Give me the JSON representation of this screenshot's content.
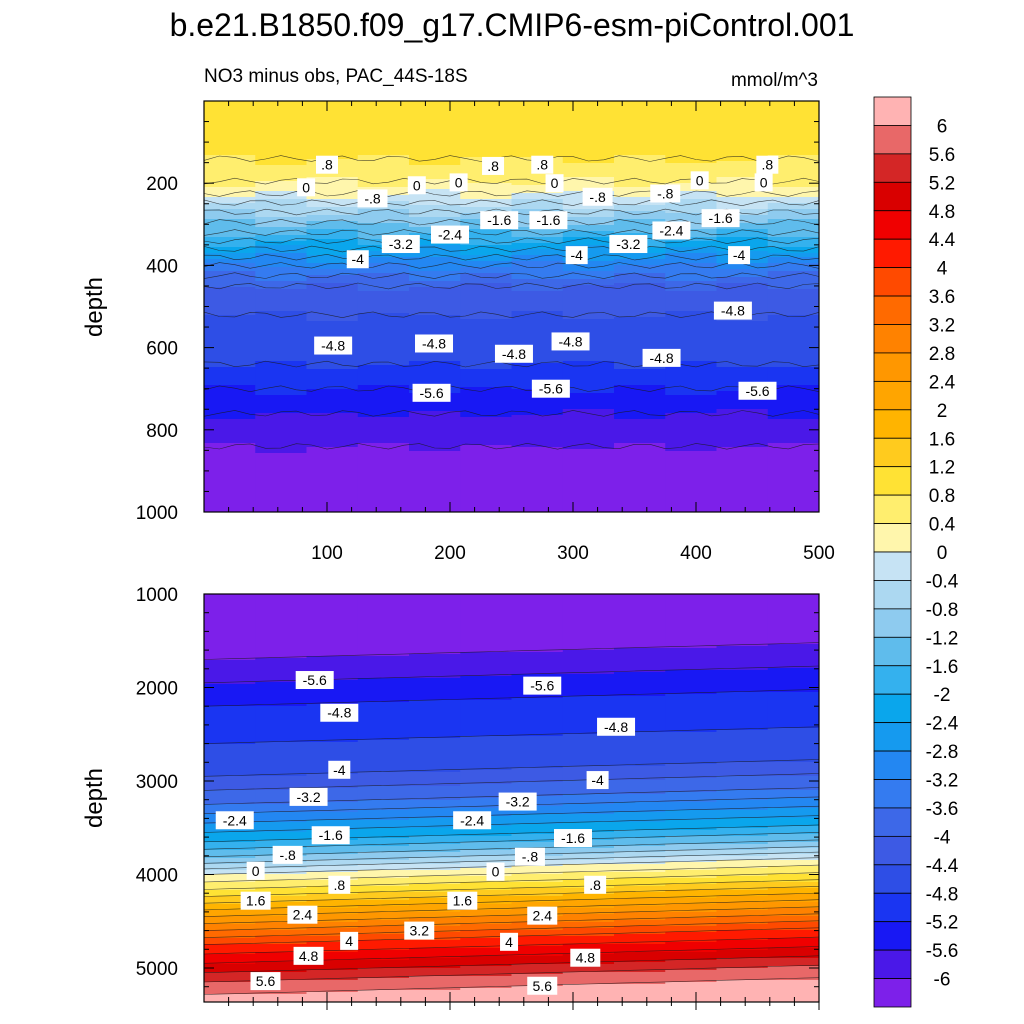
{
  "title": "b.e21.B1850.f09_g17.CMIP6-esm-piControl.001",
  "subtitle_left": "NO3 minus obs, PAC_44S-18S",
  "subtitle_right": "mmol/m^3",
  "chart_data": [
    {
      "type": "contour",
      "panel": "upper",
      "xlabel": "",
      "ylabel": "depth",
      "xlim": [
        0,
        500
      ],
      "ylim": [
        1000,
        0
      ],
      "xticks": [
        "100",
        "200",
        "300",
        "400",
        "500"
      ],
      "yticks": [
        "200",
        "400",
        "600",
        "800",
        "1000"
      ],
      "depth_profile": [
        {
          "depth": 0,
          "value": 1.0
        },
        {
          "depth": 100,
          "value": 1.0
        },
        {
          "depth": 180,
          "value": 0.6
        },
        {
          "depth": 225,
          "value": 0.0
        },
        {
          "depth": 270,
          "value": -0.8
        },
        {
          "depth": 320,
          "value": -1.6
        },
        {
          "depth": 360,
          "value": -2.4
        },
        {
          "depth": 400,
          "value": -3.2
        },
        {
          "depth": 450,
          "value": -4.0
        },
        {
          "depth": 520,
          "value": -4.4
        },
        {
          "depth": 640,
          "value": -4.8
        },
        {
          "depth": 700,
          "value": -5.2
        },
        {
          "depth": 760,
          "value": -5.6
        },
        {
          "depth": 840,
          "value": -6.0
        },
        {
          "depth": 1000,
          "value": -6.2
        }
      ],
      "contour_labels": [
        {
          "x": 100,
          "depth": 155,
          "text": ".8"
        },
        {
          "x": 235,
          "depth": 158,
          "text": ".8"
        },
        {
          "x": 275,
          "depth": 155,
          "text": ".8"
        },
        {
          "x": 458,
          "depth": 155,
          "text": ".8"
        },
        {
          "x": 83,
          "depth": 210,
          "text": "0"
        },
        {
          "x": 173,
          "depth": 205,
          "text": "0"
        },
        {
          "x": 207,
          "depth": 198,
          "text": "0"
        },
        {
          "x": 285,
          "depth": 200,
          "text": "0"
        },
        {
          "x": 403,
          "depth": 193,
          "text": "0"
        },
        {
          "x": 455,
          "depth": 198,
          "text": "0"
        },
        {
          "x": 137,
          "depth": 237,
          "text": "-.8"
        },
        {
          "x": 320,
          "depth": 233,
          "text": "-.8"
        },
        {
          "x": 375,
          "depth": 225,
          "text": "-.8"
        },
        {
          "x": 240,
          "depth": 290,
          "text": "-1.6"
        },
        {
          "x": 280,
          "depth": 290,
          "text": "-1.6"
        },
        {
          "x": 420,
          "depth": 285,
          "text": "-1.6"
        },
        {
          "x": 200,
          "depth": 325,
          "text": "-2.4"
        },
        {
          "x": 380,
          "depth": 315,
          "text": "-2.4"
        },
        {
          "x": 160,
          "depth": 348,
          "text": "-3.2"
        },
        {
          "x": 345,
          "depth": 348,
          "text": "-3.2"
        },
        {
          "x": 125,
          "depth": 385,
          "text": "-4"
        },
        {
          "x": 303,
          "depth": 375,
          "text": "-4"
        },
        {
          "x": 435,
          "depth": 375,
          "text": "-4"
        },
        {
          "x": 430,
          "depth": 510,
          "text": "-4.8"
        },
        {
          "x": 105,
          "depth": 595,
          "text": "-4.8"
        },
        {
          "x": 187,
          "depth": 590,
          "text": "-4.8"
        },
        {
          "x": 252,
          "depth": 615,
          "text": "-4.8"
        },
        {
          "x": 298,
          "depth": 585,
          "text": "-4.8"
        },
        {
          "x": 372,
          "depth": 625,
          "text": "-4.8"
        },
        {
          "x": 185,
          "depth": 710,
          "text": "-5.6"
        },
        {
          "x": 282,
          "depth": 700,
          "text": "-5.6"
        },
        {
          "x": 450,
          "depth": 705,
          "text": "-5.6"
        }
      ]
    },
    {
      "type": "contour",
      "panel": "lower",
      "xlabel": "",
      "ylabel": "depth",
      "xlim": [
        0,
        500
      ],
      "ylim": [
        1000,
        5350
      ],
      "yticks": [
        "1000",
        "2000",
        "3000",
        "4000",
        "5000"
      ],
      "depth_profile": [
        {
          "depth": 1000,
          "value": -6.2
        },
        {
          "depth": 1700,
          "value": -6.0
        },
        {
          "depth": 1950,
          "value": -5.6
        },
        {
          "depth": 2200,
          "value": -5.2
        },
        {
          "depth": 2600,
          "value": -4.8
        },
        {
          "depth": 2950,
          "value": -4.4
        },
        {
          "depth": 3250,
          "value": -3.6
        },
        {
          "depth": 3450,
          "value": -2.8
        },
        {
          "depth": 3650,
          "value": -2.0
        },
        {
          "depth": 3850,
          "value": -1.0
        },
        {
          "depth": 4000,
          "value": 0.0
        },
        {
          "depth": 4200,
          "value": 1.0
        },
        {
          "depth": 4450,
          "value": 2.4
        },
        {
          "depth": 4750,
          "value": 4.0
        },
        {
          "depth": 4950,
          "value": 4.8
        },
        {
          "depth": 5150,
          "value": 5.6
        },
        {
          "depth": 5350,
          "value": 6.2
        }
      ],
      "contour_labels": [
        {
          "x": 90,
          "depth": 1920,
          "text": "-5.6"
        },
        {
          "x": 275,
          "depth": 1980,
          "text": "-5.6"
        },
        {
          "x": 110,
          "depth": 2270,
          "text": "-4.8"
        },
        {
          "x": 335,
          "depth": 2420,
          "text": "-4.8"
        },
        {
          "x": 110,
          "depth": 2880,
          "text": "-4"
        },
        {
          "x": 320,
          "depth": 2990,
          "text": "-4"
        },
        {
          "x": 85,
          "depth": 3170,
          "text": "-3.2"
        },
        {
          "x": 255,
          "depth": 3220,
          "text": "-3.2"
        },
        {
          "x": 25,
          "depth": 3420,
          "text": "-2.4"
        },
        {
          "x": 218,
          "depth": 3420,
          "text": "-2.4"
        },
        {
          "x": 103,
          "depth": 3580,
          "text": "-1.6"
        },
        {
          "x": 300,
          "depth": 3610,
          "text": "-1.6"
        },
        {
          "x": 68,
          "depth": 3790,
          "text": "-.8"
        },
        {
          "x": 265,
          "depth": 3810,
          "text": "-.8"
        },
        {
          "x": 42,
          "depth": 3960,
          "text": "0"
        },
        {
          "x": 237,
          "depth": 3970,
          "text": "0"
        },
        {
          "x": 110,
          "depth": 4110,
          "text": ".8"
        },
        {
          "x": 318,
          "depth": 4110,
          "text": ".8"
        },
        {
          "x": 42,
          "depth": 4280,
          "text": "1.6"
        },
        {
          "x": 210,
          "depth": 4280,
          "text": "1.6"
        },
        {
          "x": 80,
          "depth": 4430,
          "text": "2.4"
        },
        {
          "x": 275,
          "depth": 4440,
          "text": "2.4"
        },
        {
          "x": 175,
          "depth": 4600,
          "text": "3.2"
        },
        {
          "x": 118,
          "depth": 4710,
          "text": "4"
        },
        {
          "x": 248,
          "depth": 4720,
          "text": "4"
        },
        {
          "x": 85,
          "depth": 4870,
          "text": "4.8"
        },
        {
          "x": 310,
          "depth": 4890,
          "text": "4.8"
        },
        {
          "x": 50,
          "depth": 5140,
          "text": "5.6"
        },
        {
          "x": 275,
          "depth": 5190,
          "text": "5.6"
        }
      ]
    }
  ],
  "colorbar": {
    "labels": [
      "6",
      "5.6",
      "5.2",
      "4.8",
      "4.4",
      "4",
      "3.6",
      "3.2",
      "2.8",
      "2.4",
      "2",
      "1.6",
      "1.2",
      "0.8",
      "0.4",
      "0",
      "-0.4",
      "-0.8",
      "-1.2",
      "-1.6",
      "-2",
      "-2.4",
      "-2.8",
      "-3.2",
      "-3.6",
      "-4",
      "-4.4",
      "-4.8",
      "-5.2",
      "-5.6",
      "-6"
    ],
    "colors": [
      "#ffb3b3",
      "#e86868",
      "#d42626",
      "#d90000",
      "#f00000",
      "#ff1a00",
      "#ff4a00",
      "#ff6a00",
      "#ff8200",
      "#ff9700",
      "#ffa500",
      "#ffb400",
      "#ffcb1e",
      "#ffe234",
      "#ffee6e",
      "#fff6ac",
      "#c6e3f4",
      "#acd8f1",
      "#8ecbef",
      "#5fbcec",
      "#34b1ee",
      "#0aa6ec",
      "#159aef",
      "#2387f2",
      "#347bf0",
      "#3d68e8",
      "#3d5ae4",
      "#2e4ee6",
      "#1a35f2",
      "#1818f4",
      "#4a18e8",
      "#7d20ea"
    ]
  }
}
